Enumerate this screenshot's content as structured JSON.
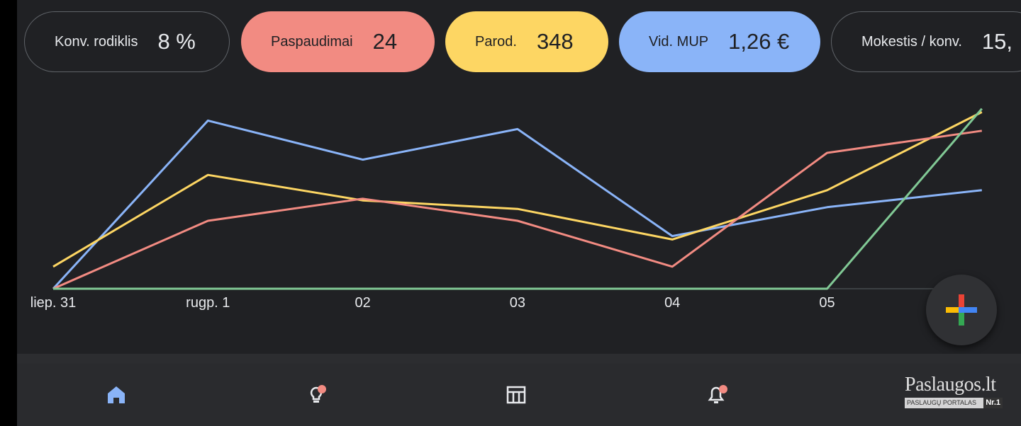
{
  "metrics": [
    {
      "label": "Konv. rodiklis",
      "value": "8 %",
      "style": "outline"
    },
    {
      "label": "Paspaudimai",
      "value": "24",
      "color": "#f28b82"
    },
    {
      "label": "Parod.",
      "value": "348",
      "color": "#fdd663"
    },
    {
      "label": "Vid. MUP",
      "value": "1,26 €",
      "color": "#8ab4f8"
    },
    {
      "label": "Mokestis / konv.",
      "value": "15,",
      "style": "outline"
    }
  ],
  "chart_data": {
    "type": "line",
    "categories": [
      "liep. 31",
      "rugp. 1",
      "02",
      "03",
      "04",
      "05",
      ""
    ],
    "ylim": [
      0,
      1
    ],
    "grid": false,
    "series": [
      {
        "color": "#8ab4f8",
        "values": [
          0.0,
          0.99,
          0.76,
          0.94,
          0.31,
          0.48,
          0.58
        ]
      },
      {
        "color": "#fdd663",
        "values": [
          0.13,
          0.67,
          0.52,
          0.47,
          0.29,
          0.58,
          1.04
        ]
      },
      {
        "color": "#f28b82",
        "values": [
          0.0,
          0.4,
          0.53,
          0.4,
          0.13,
          0.8,
          0.93
        ]
      },
      {
        "color": "#81c995",
        "values": [
          0.0,
          0.0,
          0.0,
          0.0,
          0.0,
          0.0,
          1.06
        ]
      }
    ]
  },
  "fab": {
    "icon": "google-plus-icon"
  },
  "nav": [
    {
      "name": "home-icon",
      "active": true,
      "badge": false
    },
    {
      "name": "lightbulb-icon",
      "active": false,
      "badge": true
    },
    {
      "name": "table-icon",
      "active": false,
      "badge": false
    },
    {
      "name": "bell-icon",
      "active": false,
      "badge": true
    }
  ],
  "watermark": {
    "title": "Paslaugos.lt",
    "subtitle": "PASLAUGŲ PORTALAS",
    "badge": "Nr.1"
  },
  "colors": {
    "background": "#202124",
    "accent_blue": "#8ab4f8",
    "accent_red": "#f28b82",
    "accent_yellow": "#fdd663",
    "accent_green": "#81c995"
  }
}
